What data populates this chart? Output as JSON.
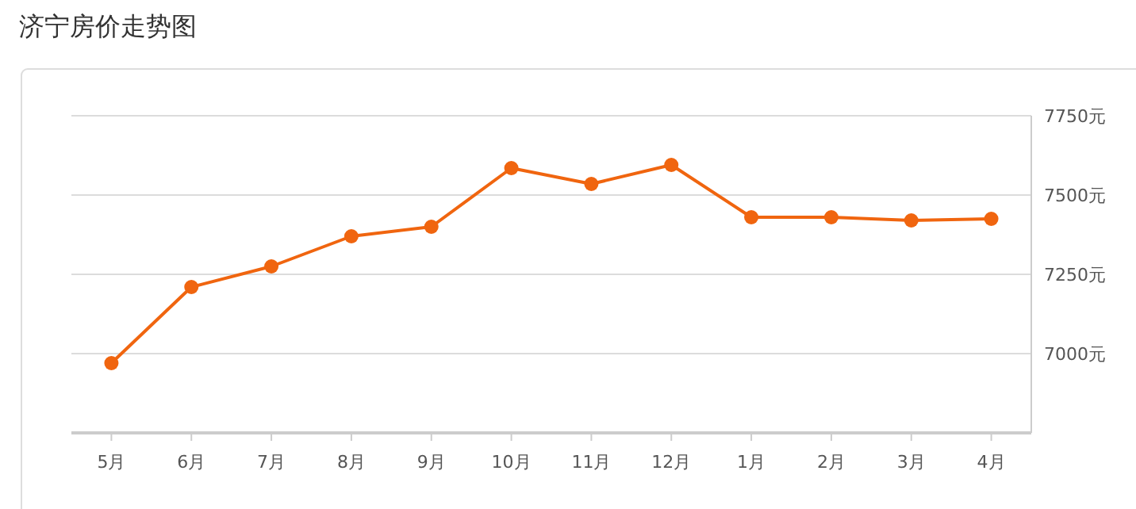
{
  "chart_data": {
    "type": "line",
    "title": "济宁房价走势图",
    "categories": [
      "5月",
      "6月",
      "7月",
      "8月",
      "9月",
      "10月",
      "11月",
      "12月",
      "1月",
      "2月",
      "3月",
      "4月"
    ],
    "series": [
      {
        "color": "#f0650f",
        "values": [
          6970,
          7210,
          7275,
          7370,
          7400,
          7585,
          7535,
          7595,
          7430,
          7430,
          7420,
          7425
        ]
      }
    ],
    "ylim": [
      6750,
      7750
    ],
    "yticks": [
      {
        "value": 7000,
        "label": "7000元"
      },
      {
        "value": 7250,
        "label": "7250元"
      },
      {
        "value": 7500,
        "label": "7500元"
      },
      {
        "value": 7750,
        "label": "7750元"
      }
    ],
    "grid": "y",
    "marker": "circle",
    "line_style": "solid"
  }
}
